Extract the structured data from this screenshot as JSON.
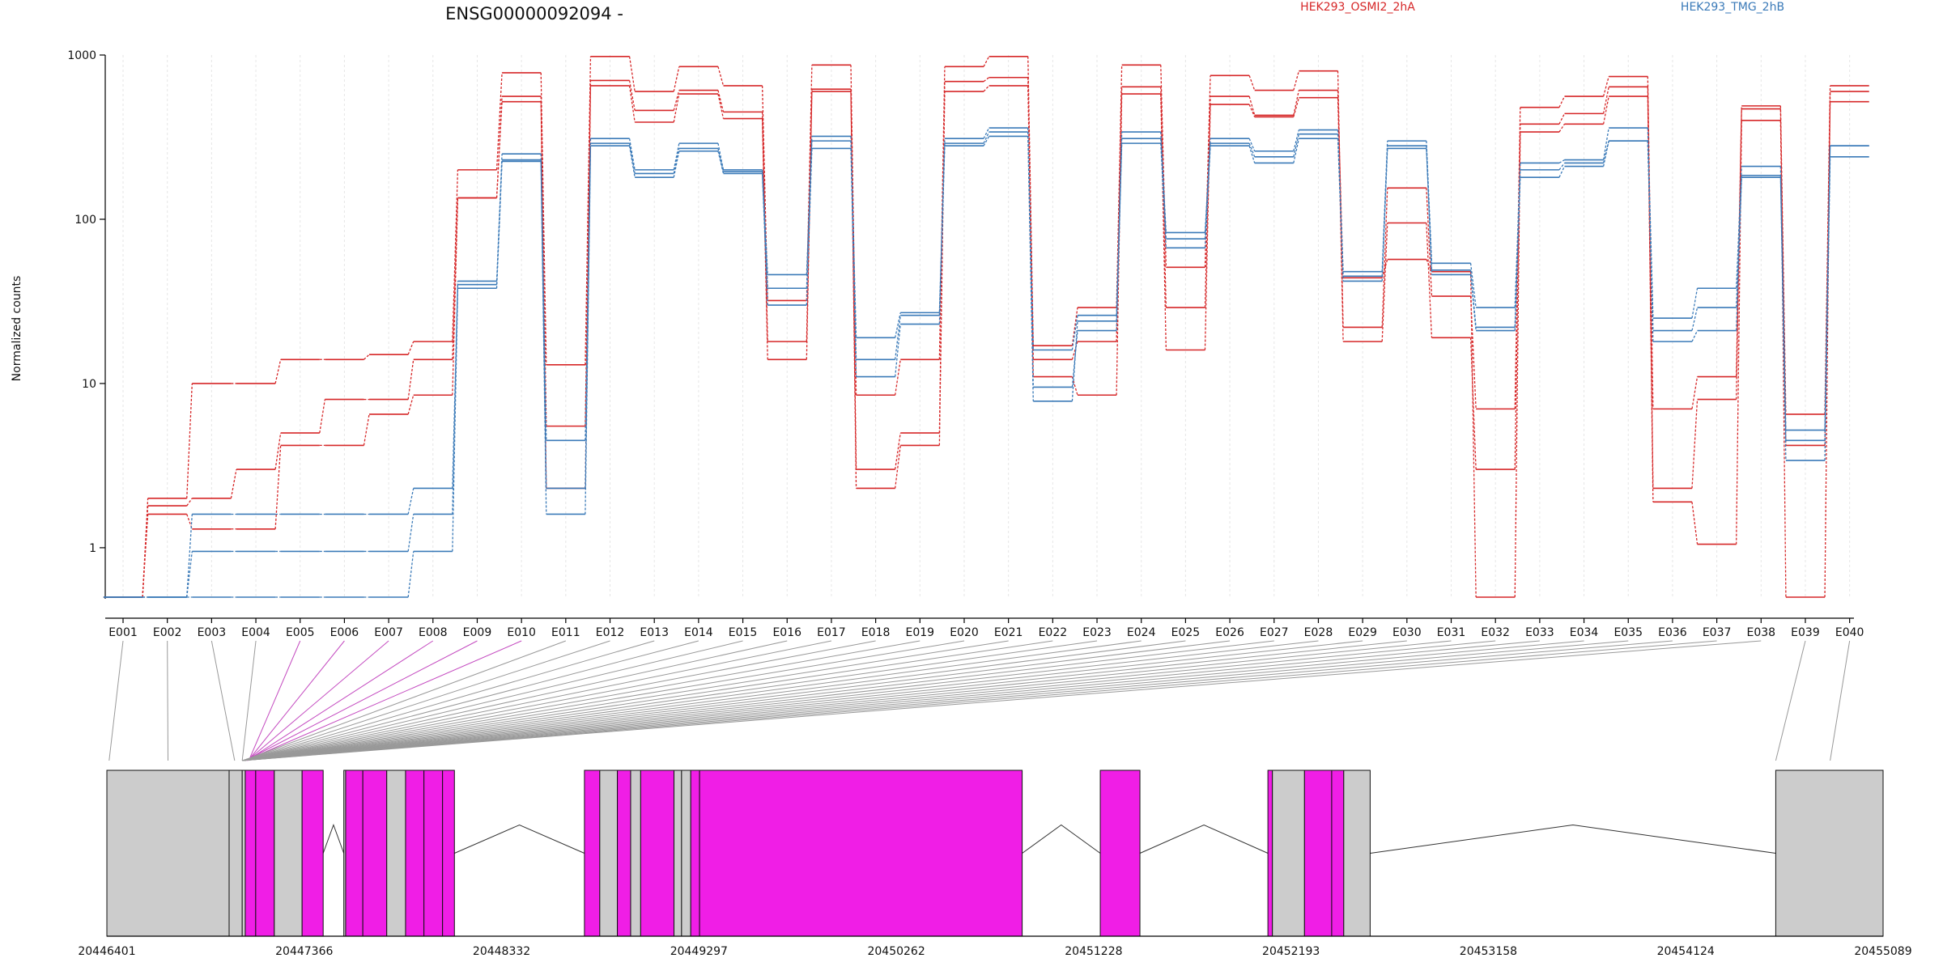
{
  "chart_data": {
    "type": "line",
    "title": "ENSG00000092094 -",
    "ylabel": "Normalized counts",
    "xlabel": "",
    "yscale": "log",
    "ylim": [
      0.5,
      1000
    ],
    "yticks": [
      "1",
      "10",
      "100",
      "1000"
    ],
    "grid": "vertical",
    "legend": "top-right",
    "categories": [
      "E001",
      "E002",
      "E003",
      "E004",
      "E005",
      "E006",
      "E007",
      "E008",
      "E009",
      "E010",
      "E011",
      "E012",
      "E013",
      "E014",
      "E015",
      "E016",
      "E017",
      "E018",
      "E019",
      "E020",
      "E021",
      "E022",
      "E023",
      "E024",
      "E025",
      "E026",
      "E027",
      "E028",
      "E029",
      "E030",
      "E031",
      "E032",
      "E033",
      "E034",
      "E035",
      "E036",
      "E037",
      "E038",
      "E039",
      "E040"
    ],
    "groups": [
      {
        "name": "HEK293_OSMI2_2hA",
        "color": "#d62728"
      },
      {
        "name": "HEK293_TMG_2hB",
        "color": "#3a7ab8"
      }
    ],
    "series": [
      {
        "group": 0,
        "values": [
          0.5,
          2,
          10,
          10,
          14,
          14,
          15,
          18,
          200,
          780,
          13,
          980,
          600,
          850,
          650,
          32,
          870,
          8.5,
          14,
          850,
          980,
          17,
          29,
          870,
          51,
          750,
          610,
          800,
          22,
          155,
          34,
          7,
          480,
          560,
          740,
          7,
          11,
          490,
          6.5,
          650
        ]
      },
      {
        "group": 0,
        "values": [
          0.5,
          1.8,
          2,
          3,
          5,
          8,
          8,
          14,
          135,
          560,
          5.5,
          700,
          460,
          610,
          450,
          18,
          620,
          3,
          5,
          690,
          730,
          14,
          18,
          640,
          29,
          560,
          430,
          610,
          18,
          95,
          19,
          3,
          380,
          440,
          640,
          2.3,
          8,
          470,
          0.5,
          600
        ]
      },
      {
        "group": 0,
        "values": [
          0.5,
          1.6,
          1.3,
          1.3,
          4.2,
          4.2,
          6.5,
          8.5,
          135,
          520,
          2.3,
          650,
          390,
          580,
          410,
          14,
          600,
          2.3,
          4.2,
          600,
          650,
          11,
          8.5,
          580,
          16,
          500,
          420,
          550,
          44,
          57,
          48,
          0.5,
          340,
          380,
          560,
          1.9,
          1.05,
          400,
          4.2,
          520
        ]
      },
      {
        "group": 1,
        "values": [
          0.5,
          0.5,
          1.6,
          1.6,
          1.6,
          1.6,
          1.6,
          2.3,
          42,
          250,
          4.5,
          310,
          200,
          290,
          200,
          46,
          320,
          19,
          27,
          310,
          360,
          16,
          26,
          340,
          83,
          310,
          260,
          350,
          48,
          300,
          54,
          29,
          220,
          230,
          360,
          25,
          38,
          210,
          5.2,
          280
        ]
      },
      {
        "group": 1,
        "values": [
          0.5,
          0.5,
          0.95,
          0.95,
          0.95,
          0.95,
          0.95,
          1.6,
          40,
          230,
          2.3,
          290,
          190,
          270,
          195,
          38,
          300,
          14,
          26,
          290,
          340,
          9.5,
          21,
          310,
          76,
          290,
          240,
          330,
          45,
          280,
          49,
          22,
          200,
          220,
          300,
          21,
          29,
          185,
          4.5,
          280
        ]
      },
      {
        "group": 1,
        "values": [
          0.5,
          0.5,
          0.5,
          0.5,
          0.5,
          0.5,
          0.5,
          0.95,
          38,
          225,
          1.6,
          280,
          180,
          260,
          190,
          30,
          270,
          11,
          23,
          280,
          320,
          7.8,
          24,
          290,
          67,
          280,
          220,
          310,
          42,
          270,
          46,
          21,
          180,
          210,
          300,
          18,
          21,
          180,
          3.4,
          240
        ]
      }
    ]
  },
  "gene_model": {
    "axis_labels": [
      "20446401",
      "20447366",
      "20448332",
      "20449297",
      "20450262",
      "20451228",
      "20452193",
      "20453158",
      "20454124",
      "20455089"
    ],
    "genome_range": [
      20446401,
      20455089
    ],
    "box_color": "#cccccc",
    "exon_color": "#f01ee6",
    "exons": [
      {
        "start": 20446401,
        "end": 20446999,
        "highlight": false
      },
      {
        "start": 20446999,
        "end": 20447063,
        "highlight": false
      },
      {
        "start": 20447063,
        "end": 20447078,
        "highlight": false
      },
      {
        "start": 20447078,
        "end": 20447129,
        "highlight": true
      },
      {
        "start": 20447129,
        "end": 20447220,
        "highlight": true
      },
      {
        "start": 20447220,
        "end": 20447356,
        "highlight": false
      },
      {
        "start": 20447356,
        "end": 20447459,
        "highlight": true
      },
      {
        "start": 20447560,
        "end": 20447569,
        "highlight": false
      },
      {
        "start": 20447569,
        "end": 20447653,
        "highlight": true
      },
      {
        "start": 20447653,
        "end": 20447770,
        "highlight": true
      },
      {
        "start": 20447770,
        "end": 20447862,
        "highlight": false
      },
      {
        "start": 20447862,
        "end": 20447952,
        "highlight": true
      },
      {
        "start": 20447952,
        "end": 20448043,
        "highlight": true
      },
      {
        "start": 20448043,
        "end": 20448101,
        "highlight": true
      },
      {
        "start": 20448737,
        "end": 20448812,
        "highlight": true
      },
      {
        "start": 20448812,
        "end": 20448898,
        "highlight": false
      },
      {
        "start": 20448898,
        "end": 20448963,
        "highlight": true
      },
      {
        "start": 20448963,
        "end": 20449012,
        "highlight": false
      },
      {
        "start": 20449012,
        "end": 20449175,
        "highlight": true
      },
      {
        "start": 20449175,
        "end": 20449212,
        "highlight": false
      },
      {
        "start": 20449212,
        "end": 20449257,
        "highlight": false
      },
      {
        "start": 20449257,
        "end": 20449300,
        "highlight": true
      },
      {
        "start": 20449300,
        "end": 20450878,
        "highlight": true
      },
      {
        "start": 20451260,
        "end": 20451454,
        "highlight": true
      },
      {
        "start": 20452080,
        "end": 20452102,
        "highlight": true
      },
      {
        "start": 20452102,
        "end": 20452259,
        "highlight": false
      },
      {
        "start": 20452259,
        "end": 20452392,
        "highlight": true
      },
      {
        "start": 20452392,
        "end": 20452451,
        "highlight": true
      },
      {
        "start": 20452451,
        "end": 20452580,
        "highlight": false
      },
      {
        "start": 20454564,
        "end": 20455089,
        "highlight": false
      }
    ],
    "exon_anchor": [
      20446412,
      20446700,
      20447026,
      20447063,
      20447095,
      20447092,
      20447088,
      20447086,
      20447078,
      20447078,
      20447066,
      20447063,
      20447063,
      20447063,
      20447063,
      20447063,
      20447063,
      20447063,
      20447063,
      20447063,
      20447063,
      20447063,
      20447063,
      20447063,
      20447063,
      20447063,
      20447063,
      20447063,
      20447063,
      20447063,
      20447063,
      20447063,
      20447063,
      20447063,
      20447063,
      20447063,
      20447063,
      20447063,
      20454564,
      20454830
    ]
  }
}
